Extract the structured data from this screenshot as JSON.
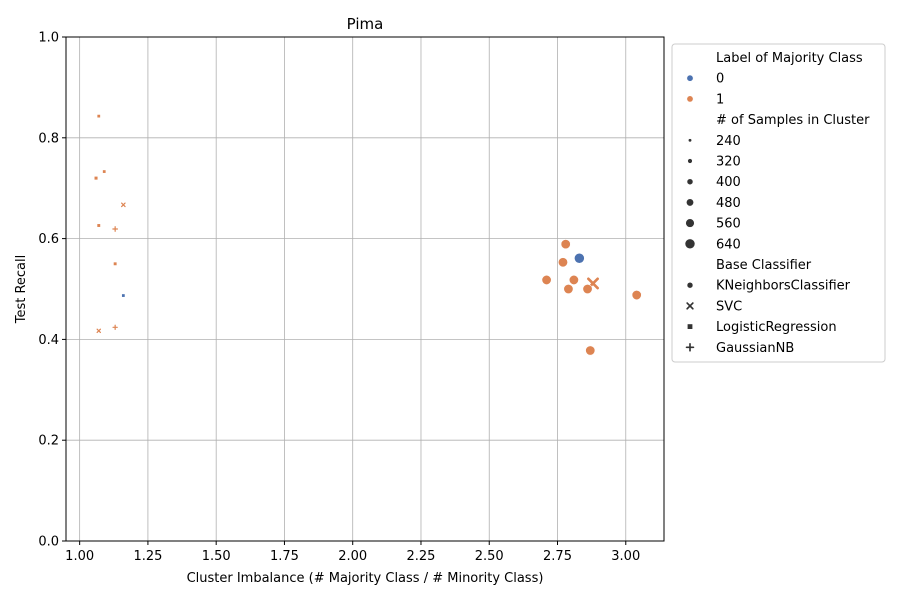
{
  "chart_data": {
    "type": "scatter",
    "title": "Pima",
    "xlabel": "Cluster Imbalance (# Majority Class / # Minority Class)",
    "ylabel": "Test Recall",
    "xlim": [
      0.95,
      3.14
    ],
    "ylim": [
      0.0,
      1.0
    ],
    "xticks": [
      1.0,
      1.25,
      1.5,
      1.75,
      2.0,
      2.25,
      2.5,
      2.75,
      3.0
    ],
    "xtick_labels": [
      "1.00",
      "1.25",
      "1.50",
      "1.75",
      "2.00",
      "2.25",
      "2.50",
      "2.75",
      "3.00"
    ],
    "yticks": [
      0.0,
      0.2,
      0.4,
      0.6,
      0.8,
      1.0
    ],
    "ytick_labels": [
      "0.0",
      "0.2",
      "0.4",
      "0.6",
      "0.8",
      "1.0"
    ],
    "grid": true,
    "legend_placement": "outside-right",
    "colors": {
      "0": "#4c72b0",
      "1": "#dd8452"
    },
    "legend": {
      "hue_title": "Label of Majority Class",
      "hue_items": [
        {
          "label": "0",
          "class": "0"
        },
        {
          "label": "1",
          "class": "1"
        }
      ],
      "size_title": "# of Samples in Cluster",
      "size_items": [
        {
          "label": "240",
          "value": 240
        },
        {
          "label": "320",
          "value": 320
        },
        {
          "label": "400",
          "value": 400
        },
        {
          "label": "480",
          "value": 480
        },
        {
          "label": "560",
          "value": 560
        },
        {
          "label": "640",
          "value": 640
        }
      ],
      "style_title": "Base Classifier",
      "style_items": [
        {
          "label": "KNeighborsClassifier",
          "marker": "circle"
        },
        {
          "label": "SVC",
          "marker": "x"
        },
        {
          "label": "LogisticRegression",
          "marker": "square"
        },
        {
          "label": "GaussianNB",
          "marker": "plus"
        }
      ]
    },
    "points": [
      {
        "x": 1.07,
        "y": 0.843,
        "class": "1",
        "size": 240,
        "marker": "square"
      },
      {
        "x": 1.09,
        "y": 0.733,
        "class": "1",
        "size": 240,
        "marker": "square"
      },
      {
        "x": 1.06,
        "y": 0.72,
        "class": "1",
        "size": 260,
        "marker": "square"
      },
      {
        "x": 1.16,
        "y": 0.667,
        "class": "1",
        "size": 250,
        "marker": "x"
      },
      {
        "x": 1.07,
        "y": 0.626,
        "class": "1",
        "size": 250,
        "marker": "square"
      },
      {
        "x": 1.13,
        "y": 0.619,
        "class": "1",
        "size": 270,
        "marker": "plus"
      },
      {
        "x": 1.13,
        "y": 0.55,
        "class": "1",
        "size": 250,
        "marker": "square"
      },
      {
        "x": 1.16,
        "y": 0.487,
        "class": "0",
        "size": 240,
        "marker": "square"
      },
      {
        "x": 1.13,
        "y": 0.424,
        "class": "1",
        "size": 250,
        "marker": "plus"
      },
      {
        "x": 1.07,
        "y": 0.417,
        "class": "1",
        "size": 240,
        "marker": "x"
      },
      {
        "x": 2.78,
        "y": 0.589,
        "class": "1",
        "size": 600,
        "marker": "circle"
      },
      {
        "x": 2.83,
        "y": 0.561,
        "class": "0",
        "size": 640,
        "marker": "circle"
      },
      {
        "x": 2.77,
        "y": 0.553,
        "class": "1",
        "size": 600,
        "marker": "circle"
      },
      {
        "x": 2.71,
        "y": 0.518,
        "class": "1",
        "size": 600,
        "marker": "circle"
      },
      {
        "x": 2.81,
        "y": 0.518,
        "class": "1",
        "size": 600,
        "marker": "circle"
      },
      {
        "x": 2.88,
        "y": 0.511,
        "class": "1",
        "size": 620,
        "marker": "x"
      },
      {
        "x": 2.79,
        "y": 0.5,
        "class": "1",
        "size": 600,
        "marker": "circle"
      },
      {
        "x": 2.86,
        "y": 0.5,
        "class": "1",
        "size": 600,
        "marker": "circle"
      },
      {
        "x": 3.04,
        "y": 0.488,
        "class": "1",
        "size": 600,
        "marker": "circle"
      },
      {
        "x": 2.87,
        "y": 0.378,
        "class": "1",
        "size": 600,
        "marker": "circle"
      }
    ]
  }
}
